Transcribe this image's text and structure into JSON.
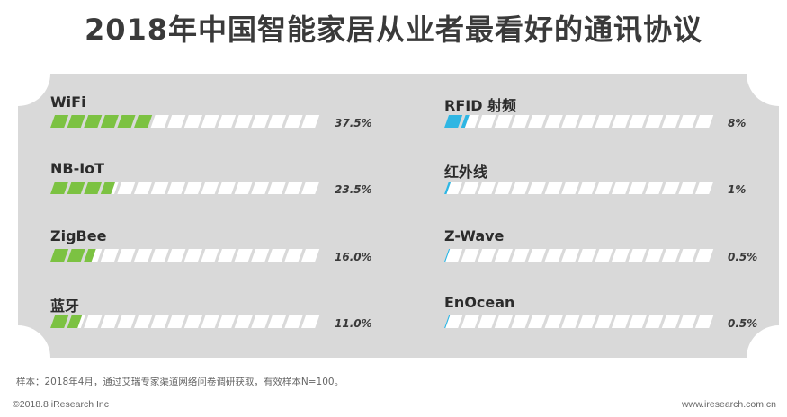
{
  "colors": {
    "green": "#7cc242",
    "blue": "#2fb6e3",
    "panel": "#d9d9d9",
    "empty": "#ffffff"
  },
  "chart_data": {
    "type": "bar",
    "title": "2018年中国智能家居从业者最看好的通讯协议",
    "unit": "%",
    "max_value": 100,
    "series": [
      {
        "name": "left",
        "color_key": "green",
        "items": [
          {
            "label": "WiFi",
            "value": 37.5,
            "display": "37.5%"
          },
          {
            "label": "NB-IoT",
            "value": 23.5,
            "display": "23.5%"
          },
          {
            "label": "ZigBee",
            "value": 16.0,
            "display": "16.0%"
          },
          {
            "label": "蓝牙",
            "value": 11.0,
            "display": "11.0%"
          }
        ]
      },
      {
        "name": "right",
        "color_key": "blue",
        "items": [
          {
            "label": "RFID 射频",
            "value": 8,
            "display": "8%"
          },
          {
            "label": "红外线",
            "value": 1,
            "display": "1%"
          },
          {
            "label": "Z-Wave",
            "value": 0.5,
            "display": "0.5%"
          },
          {
            "label": "EnOcean",
            "value": 0.5,
            "display": "0.5%"
          }
        ]
      }
    ]
  },
  "footer": {
    "note": "样本：2018年4月，通过艾瑞专家渠道网络问卷调研获取，有效样本N=100。",
    "copyright": "©2018.8 iResearch Inc",
    "website": "www.iresearch.com.cn"
  }
}
